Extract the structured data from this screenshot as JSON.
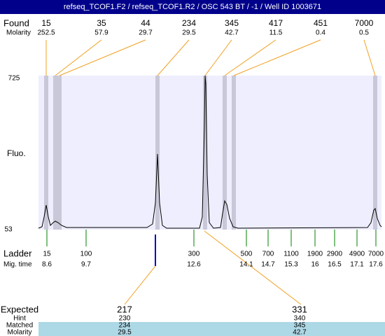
{
  "header": {
    "title": "refseq_TCOF1.F2 / refseq_TCOF1.R2 / OSC 543 BT / -1 / Well ID 1003671"
  },
  "found": {
    "label": "Found",
    "sublabel": "Molarity",
    "sizes": [
      15,
      35,
      44,
      234,
      345,
      417,
      451,
      7000
    ],
    "molarity": [
      252.5,
      57.9,
      29.7,
      29.5,
      42.7,
      11.5,
      0.4,
      0.5
    ]
  },
  "axis": {
    "label": "Fluo.",
    "max": 725,
    "min": 53
  },
  "ladder": {
    "label": "Ladder",
    "sublabel": "Mig. time",
    "sizes": [
      15,
      100,
      300,
      500,
      700,
      1100,
      1900,
      2900,
      4900,
      7000
    ],
    "times": [
      8.6,
      9.7,
      12.6,
      14.1,
      14.7,
      15.3,
      16,
      16.5,
      17.1,
      17.6
    ]
  },
  "expected": {
    "labels": [
      "Expected",
      "Hint",
      "Matched",
      "Molarity"
    ],
    "columns": [
      {
        "expected": 217,
        "hint": 230,
        "matched": 234,
        "molarity": 29.5
      },
      {
        "expected": 331,
        "hint": 340,
        "matched": 345,
        "molarity": 42.7
      }
    ]
  }
}
